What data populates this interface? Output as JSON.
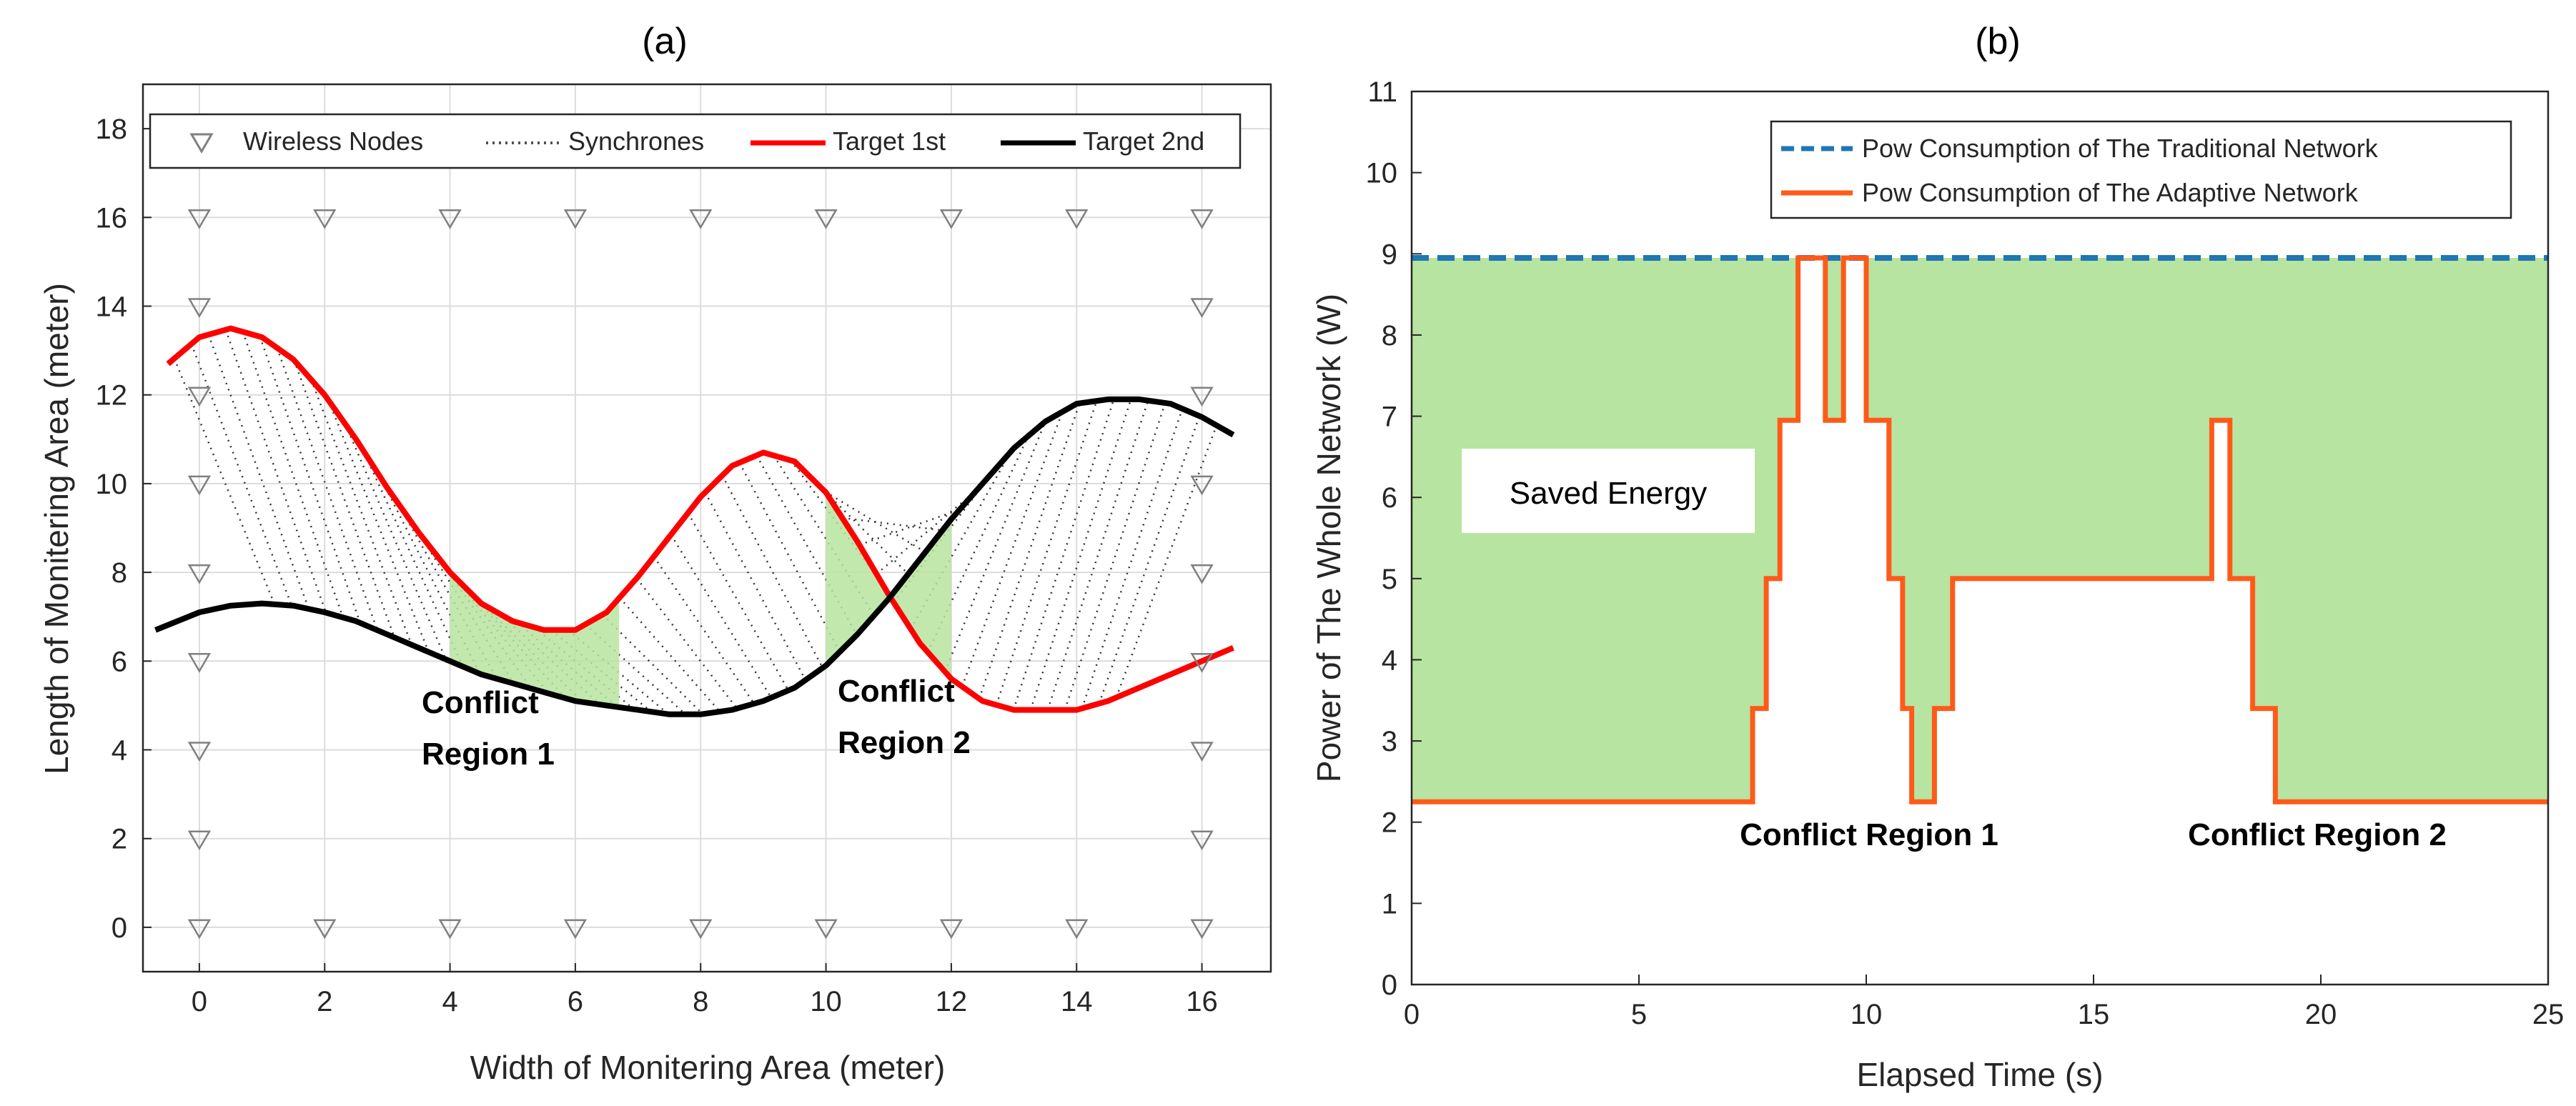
{
  "chart_data": [
    {
      "type": "line",
      "panel_label": "(a)",
      "xlabel": "Width of Monitering Area (meter)",
      "ylabel": "Length of Monitering Area (meter)",
      "xlim": [
        -0.9,
        17.1
      ],
      "ylim": [
        -1,
        19
      ],
      "xticks": [
        0,
        2,
        4,
        6,
        8,
        10,
        12,
        14,
        16
      ],
      "yticks": [
        0,
        2,
        4,
        6,
        8,
        10,
        12,
        14,
        16,
        18
      ],
      "grid": true,
      "legend": {
        "placement": "top",
        "entries": [
          "Wireless Nodes",
          "Synchrones",
          "Target 1st",
          "Target 2nd"
        ]
      },
      "series": [
        {
          "name": "Target 1st",
          "color": "#ff0000",
          "x": [
            -0.5,
            0,
            0.5,
            1,
            1.5,
            2,
            2.5,
            3,
            3.5,
            4,
            4.5,
            5,
            5.5,
            6,
            6.5,
            7,
            7.5,
            8,
            8.5,
            9,
            9.5,
            10,
            10.5,
            11,
            11.5,
            12,
            12.5,
            13,
            13.5,
            14,
            14.5,
            15,
            15.5,
            16,
            16.5
          ],
          "y": [
            12.7,
            13.3,
            13.5,
            13.3,
            12.8,
            12.0,
            11.0,
            9.9,
            8.9,
            8.0,
            7.3,
            6.9,
            6.7,
            6.7,
            7.1,
            7.9,
            8.8,
            9.7,
            10.4,
            10.7,
            10.5,
            9.8,
            8.7,
            7.5,
            6.4,
            5.6,
            5.1,
            4.9,
            4.9,
            4.9,
            5.1,
            5.4,
            5.7,
            6.0,
            6.3
          ]
        },
        {
          "name": "Target 2nd",
          "color": "#000000",
          "x": [
            -0.7,
            0,
            0.5,
            1,
            1.5,
            2,
            2.5,
            3,
            3.5,
            4,
            4.5,
            5,
            5.5,
            6,
            6.5,
            7,
            7.5,
            8,
            8.5,
            9,
            9.5,
            10,
            10.5,
            11,
            11.5,
            12,
            12.5,
            13,
            13.5,
            14,
            14.5,
            15,
            15.5,
            16,
            16.5
          ],
          "y": [
            6.7,
            7.1,
            7.25,
            7.3,
            7.25,
            7.1,
            6.9,
            6.6,
            6.3,
            6.0,
            5.7,
            5.5,
            5.3,
            5.1,
            5.0,
            4.9,
            4.8,
            4.8,
            4.9,
            5.1,
            5.4,
            5.9,
            6.6,
            7.4,
            8.3,
            9.2,
            10.0,
            10.8,
            11.4,
            11.8,
            11.9,
            11.9,
            11.8,
            11.5,
            11.1
          ]
        }
      ],
      "nodes": [
        [
          0,
          16
        ],
        [
          2,
          16
        ],
        [
          4,
          16
        ],
        [
          6,
          16
        ],
        [
          8,
          16
        ],
        [
          10,
          16
        ],
        [
          12,
          16
        ],
        [
          14,
          16
        ],
        [
          16,
          16
        ],
        [
          0,
          14
        ],
        [
          0,
          12
        ],
        [
          0,
          10
        ],
        [
          0,
          8
        ],
        [
          0,
          6
        ],
        [
          0,
          4
        ],
        [
          0,
          2
        ],
        [
          0,
          0
        ],
        [
          16,
          14
        ],
        [
          16,
          12
        ],
        [
          16,
          10
        ],
        [
          16,
          8
        ],
        [
          16,
          6
        ],
        [
          16,
          4
        ],
        [
          16,
          2
        ],
        [
          16,
          0
        ],
        [
          2,
          0
        ],
        [
          4,
          0
        ],
        [
          6,
          0
        ],
        [
          8,
          0
        ],
        [
          10,
          0
        ],
        [
          12,
          0
        ],
        [
          14,
          0
        ]
      ],
      "conflict_regions": [
        [
          4.0,
          6.7
        ],
        [
          10.0,
          12.0
        ]
      ],
      "annotations": [
        "Conflict",
        "Region 1",
        "Conflict",
        "Region 2"
      ]
    },
    {
      "type": "step",
      "panel_label": "(b)",
      "xlabel": "Elapsed Time (s)",
      "ylabel": "Power of The Whole Network (W)",
      "xlim": [
        0,
        25
      ],
      "ylim": [
        0,
        11
      ],
      "xticks": [
        0,
        5,
        10,
        15,
        20,
        25
      ],
      "yticks": [
        0,
        1,
        2,
        3,
        4,
        5,
        6,
        7,
        8,
        9,
        10,
        11
      ],
      "grid": false,
      "legend": {
        "placement": "top-right",
        "entries": [
          "Pow Consumption of The Traditional Network",
          "Pow Consumption of The Adaptive Network"
        ]
      },
      "series": [
        {
          "name": "Pow Consumption of The Traditional Network",
          "color": "#1f77b4",
          "style": "dashed",
          "x": [
            0,
            25
          ],
          "y": [
            8.95,
            8.95
          ]
        },
        {
          "name": "Pow Consumption of The Adaptive Network",
          "color": "#ff5a1a",
          "style": "step",
          "x": [
            0,
            7.5,
            7.5,
            7.8,
            7.8,
            8.1,
            8.1,
            8.5,
            8.5,
            9.1,
            9.1,
            9.5,
            9.5,
            10.0,
            10.0,
            10.5,
            10.5,
            10.8,
            10.8,
            11.0,
            11.0,
            11.5,
            11.5,
            11.9,
            11.9,
            17.6,
            17.6,
            18.0,
            18.0,
            18.5,
            18.5,
            19.0,
            19.0,
            19.5,
            19.5,
            19.9,
            19.9,
            25
          ],
          "y": [
            2.25,
            2.25,
            3.4,
            3.4,
            5.0,
            5.0,
            6.95,
            6.95,
            8.95,
            8.95,
            6.95,
            6.95,
            8.95,
            8.95,
            6.95,
            6.95,
            5.0,
            5.0,
            3.4,
            3.4,
            2.25,
            2.25,
            3.4,
            3.4,
            5.0,
            5.0,
            6.95,
            6.95,
            5.0,
            5.0,
            3.4,
            3.4,
            2.25,
            2.25,
            2.25,
            2.25,
            2.25,
            2.25
          ]
        }
      ],
      "fill_label": "Saved Energy",
      "fill_color": "#b7e4a0",
      "annotations": [
        "Conflict Region 1",
        "Conflict Region 2"
      ]
    }
  ]
}
